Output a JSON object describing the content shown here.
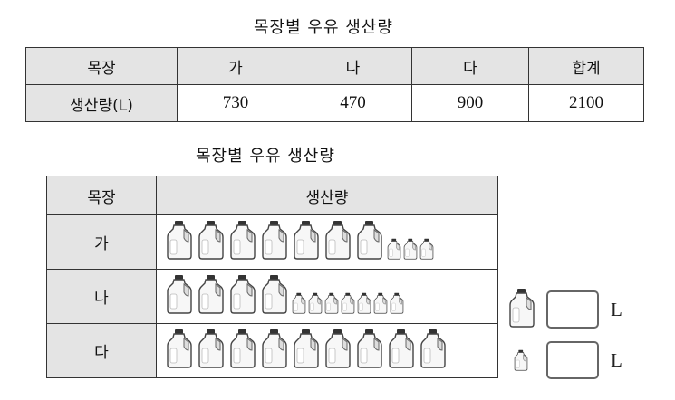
{
  "summary_table": {
    "title": "목장별 우유 생산량",
    "header_label": "목장",
    "columns": [
      "가",
      "나",
      "다",
      "합계"
    ],
    "row_label": "생산량(L)",
    "values": [
      "730",
      "470",
      "900",
      "2100"
    ]
  },
  "pictograph": {
    "title": "목장별 우유 생산량",
    "col_farm": "목장",
    "col_amount": "생산량",
    "rows": [
      {
        "farm": "가",
        "big": 7,
        "small": 3
      },
      {
        "farm": "나",
        "big": 4,
        "small": 7
      },
      {
        "farm": "다",
        "big": 9,
        "small": 0
      }
    ],
    "legend": [
      {
        "icon": "big-milk-jug-icon",
        "value": "",
        "unit": "L"
      },
      {
        "icon": "small-milk-jug-icon",
        "value": "",
        "unit": "L"
      }
    ]
  }
}
